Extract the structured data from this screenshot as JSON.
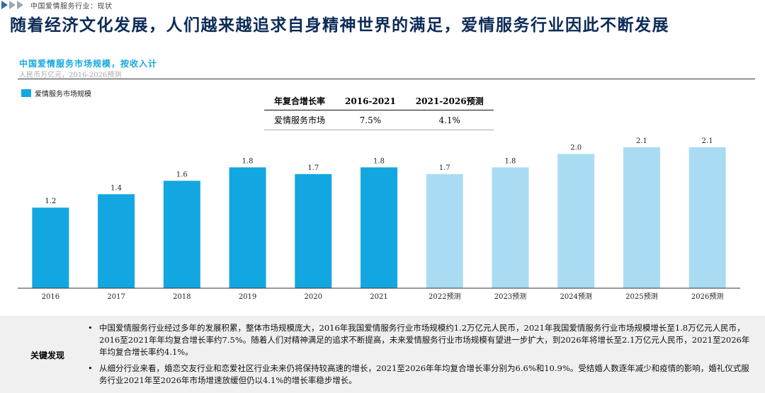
{
  "breadcrumb": {
    "text": "中国爱情服务行业：现状"
  },
  "page": {
    "title": "随着经济文化发展，人们越来越追求自身精神世界的满足，爱情服务行业因此不断发展"
  },
  "chart_header": {
    "title": "中国爱情服务市场规模，按收入计",
    "unit": "人民币万亿元，2016-2026预测"
  },
  "legend": {
    "label": "爱情服务市场规模",
    "color": "#12a7e0"
  },
  "cagr_table": {
    "headers": [
      "年复合增长率",
      "2016-2021",
      "2021-2026预测"
    ],
    "rows": [
      {
        "label": "爱情服务市场",
        "v1": "7.5%",
        "v2": "4.1%"
      }
    ]
  },
  "chart_data": {
    "type": "bar",
    "title": "中国爱情服务市场规模，按收入计",
    "ylabel": "人民币万亿元",
    "ylim": [
      0,
      2.5
    ],
    "categories": [
      "2016",
      "2017",
      "2018",
      "2019",
      "2020",
      "2021",
      "2022预测",
      "2023预测",
      "2024预测",
      "2025预测",
      "2026预测"
    ],
    "values": [
      1.2,
      1.4,
      1.6,
      1.8,
      1.7,
      1.8,
      1.7,
      1.8,
      2.0,
      2.1,
      2.1
    ],
    "forecast": [
      false,
      false,
      false,
      false,
      false,
      false,
      true,
      true,
      true,
      true,
      true
    ],
    "colors": {
      "actual": "#12a7e0",
      "forecast": "#a9dcf2"
    }
  },
  "findings": {
    "label": "关键发现",
    "items": [
      "中国爱情服务行业经过多年的发展积累，整体市场规模庞大，2016年我国爱情服务行业市场规模约1.2万亿元人民币，2021年我国爱情服务行业市场规模增长至1.8万亿元人民币，2016至2021年年均复合增长率约7.5%。随着人们对精神满足的追求不断提高，未来爱情服务行业市场规模有望进一步扩大，到2026年将增长至2.1万亿元人民币，2021至2026年年均复合增长率约4.1%。",
      "从细分行业来看，婚恋交友行业和恋爱社区行业未来仍将保持较高速的增长，2021至2026年年均复合增长率分别为6.6%和10.9%。受结婚人数逐年减少和疫情的影响，婚礼仪式服务行业2021年至2026年市场增速放缓但仍以4.1%的增长率稳步增长。"
    ]
  }
}
